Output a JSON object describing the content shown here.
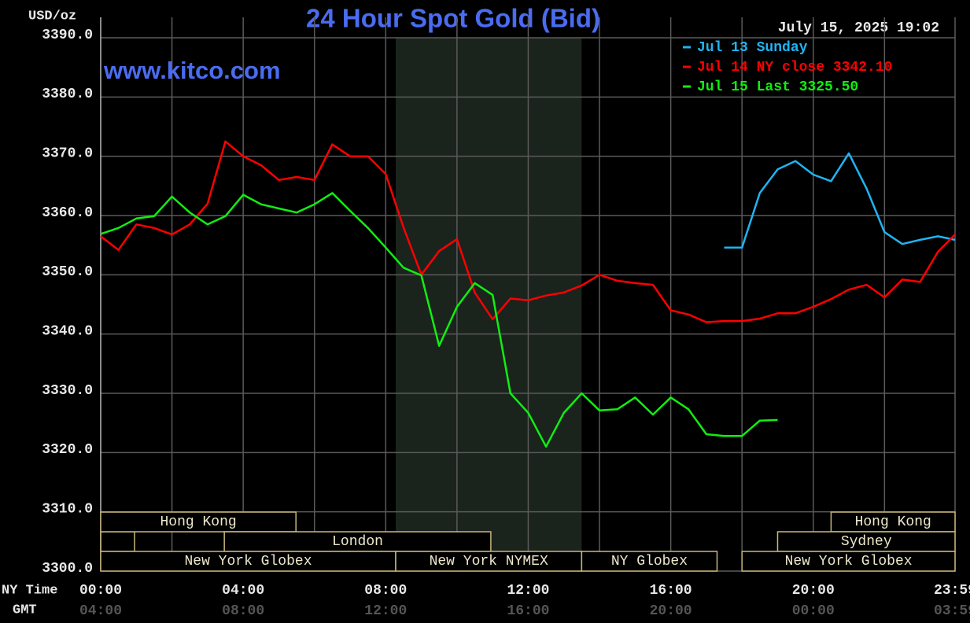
{
  "chart_data": {
    "type": "line",
    "title": "24 Hour Spot Gold (Bid)",
    "y_label": "USD/oz",
    "watermark": "www.kitco.com",
    "timestamp": "July 15, 2025 19:02",
    "x_label": "NY Time",
    "x2_label": "GMT",
    "x": [
      0,
      0.5,
      1,
      1.5,
      2,
      2.5,
      3,
      3.5,
      4,
      4.5,
      5,
      5.5,
      6,
      6.5,
      7,
      7.5,
      8,
      8.5,
      9,
      9.5,
      10,
      10.5,
      11,
      11.5,
      12,
      12.5,
      13,
      13.5,
      14,
      14.5,
      15,
      15.5,
      16,
      16.5,
      17,
      17.5,
      18,
      18.5,
      19,
      19.5,
      20,
      20.5,
      21,
      21.5,
      22,
      22.5,
      23,
      23.5,
      23.98
    ],
    "series": [
      {
        "name": "Jul 13 Sunday",
        "color": "#1fb4f2",
        "values": [
          null,
          null,
          null,
          null,
          null,
          null,
          null,
          null,
          null,
          null,
          null,
          null,
          null,
          null,
          null,
          null,
          null,
          null,
          null,
          null,
          null,
          null,
          null,
          null,
          null,
          null,
          null,
          null,
          null,
          null,
          null,
          null,
          null,
          null,
          null,
          3354.6,
          3354.6,
          3363.8,
          3367.8,
          3369.2,
          3366.9,
          3365.8,
          3370.5,
          3364.5,
          3357.2,
          3355.2,
          3355.9,
          3356.5,
          3355.9
        ]
      },
      {
        "name": "Jul 14 NY close 3342.10",
        "color": "#ff0000",
        "values": [
          3356.5,
          3354.2,
          3358.5,
          3357.9,
          3356.8,
          3358.5,
          3362,
          3372.5,
          3370,
          3368.5,
          3366,
          3366.5,
          3366,
          3372,
          3370,
          3370,
          3367,
          3358,
          3350,
          3354,
          3356,
          3347,
          3342.5,
          3346,
          3345.7,
          3346.5,
          3347,
          3348.2,
          3350,
          3349,
          3348.6,
          3348.3,
          3344,
          3343.3,
          3342,
          3342.2,
          3342.2,
          3342.6,
          3343.5,
          3343.5,
          3344.6,
          3345.9,
          3347.5,
          3348.3,
          3346.2,
          3349.2,
          3348.8,
          3353.9,
          3356.8
        ]
      },
      {
        "name": "Jul 15 Last 3325.50",
        "color": "#11ee11",
        "values": [
          3356.9,
          3357.9,
          3359.5,
          3359.9,
          3363.2,
          3360.5,
          3358.5,
          3359.9,
          3363.5,
          3361.9,
          3361.2,
          3360.5,
          3361.9,
          3363.8,
          3360.8,
          3357.9,
          3354.6,
          3351.2,
          3349.9,
          3338,
          3344.6,
          3348.6,
          3346.6,
          3330,
          3326.7,
          3321,
          3326.7,
          3330,
          3327.1,
          3327.3,
          3329.3,
          3326.4,
          3329.3,
          3327.3,
          3323.1,
          3322.8,
          3322.8,
          3325.4,
          3325.5,
          null,
          null,
          null,
          null,
          null,
          null,
          null,
          null,
          null,
          null
        ]
      }
    ],
    "xlim": [
      0,
      23.98
    ],
    "xticks": [
      {
        "value": 0,
        "label": "00:00"
      },
      {
        "value": 4,
        "label": "04:00"
      },
      {
        "value": 8,
        "label": "08:00"
      },
      {
        "value": 12,
        "label": "12:00"
      },
      {
        "value": 16,
        "label": "16:00"
      },
      {
        "value": 20,
        "label": "20:00"
      },
      {
        "value": 23.98,
        "label": "23:59"
      }
    ],
    "x2ticks": [
      {
        "value": 0,
        "label": "04:00"
      },
      {
        "value": 4,
        "label": "08:00"
      },
      {
        "value": 8,
        "label": "12:00"
      },
      {
        "value": 12,
        "label": "16:00"
      },
      {
        "value": 16,
        "label": "20:00"
      },
      {
        "value": 20,
        "label": "00:00"
      },
      {
        "value": 23.98,
        "label": "03:59"
      }
    ],
    "xminor": [
      2,
      6,
      10,
      14,
      18,
      22
    ],
    "ylim": [
      3300,
      3390
    ],
    "yticks": [
      {
        "value": 3300,
        "label": "3300.0"
      },
      {
        "value": 3310,
        "label": "3310.0"
      },
      {
        "value": 3320,
        "label": "3320.0"
      },
      {
        "value": 3330,
        "label": "3330.0"
      },
      {
        "value": 3340,
        "label": "3340.0"
      },
      {
        "value": 3350,
        "label": "3350.0"
      },
      {
        "value": 3360,
        "label": "3360.0"
      },
      {
        "value": 3370,
        "label": "3370.0"
      },
      {
        "value": 3380,
        "label": "3380.0"
      },
      {
        "value": 3390,
        "label": "3390.0"
      }
    ],
    "grid": true,
    "shade": [
      8.28,
      13.5
    ],
    "sessions": [
      [
        {
          "label": "Hong Kong",
          "start": 0,
          "end": 5.48
        },
        {
          "label": "Hong Kong",
          "start": 20.5,
          "end": 23.98
        }
      ],
      [
        {
          "label": "London",
          "start": 3.47,
          "end": 10.95
        },
        {
          "label": "Sydney",
          "start": 19.0,
          "end": 23.98
        }
      ],
      [
        {
          "label": "New York Globex",
          "start": 0,
          "end": 8.28
        },
        {
          "label": "New York NYMEX",
          "start": 8.28,
          "end": 13.5
        },
        {
          "label": "NY Globex",
          "start": 13.5,
          "end": 17.3
        },
        {
          "label": "New York Globex",
          "start": 18.0,
          "end": 23.98
        }
      ]
    ]
  }
}
